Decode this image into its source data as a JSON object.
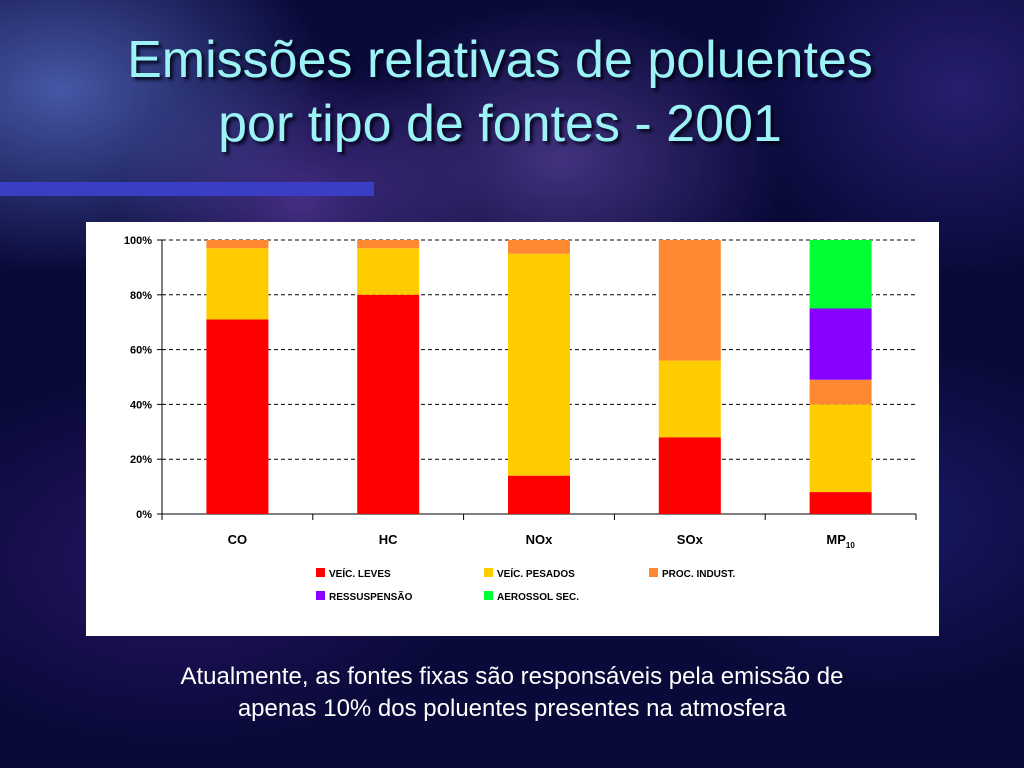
{
  "slide": {
    "title_line1": "Emissões relativas de poluentes",
    "title_line2": "por tipo de fontes - 2001",
    "caption_line1": "Atualmente, as fontes fixas são responsáveis pela emissão de",
    "caption_line2": "apenas 10% dos poluentes presentes na atmosfera"
  },
  "colors": {
    "title": "#9cf3f5",
    "accent_rule": "#3a3ec4",
    "background": "#0a0a3a"
  },
  "chart_data": {
    "type": "bar",
    "stacked": true,
    "categories": [
      "CO",
      "HC",
      "NOx",
      "SOx",
      "MP"
    ],
    "category_subscripts": [
      "",
      "",
      "",
      "",
      "10"
    ],
    "ylim": [
      0,
      100
    ],
    "yticks": [
      0,
      20,
      40,
      60,
      80,
      100
    ],
    "ytick_labels": [
      "0%",
      "20%",
      "40%",
      "60%",
      "80%",
      "100%"
    ],
    "grid": "horizontal dashed",
    "legend_position": "bottom",
    "series": [
      {
        "name": "VEÍC. LEVES",
        "color": "#ff0000",
        "values": [
          71,
          80,
          14,
          28,
          8
        ]
      },
      {
        "name": "VEÍC. PESADOS",
        "color": "#ffcc00",
        "values": [
          26,
          17,
          81,
          28,
          32
        ]
      },
      {
        "name": "PROC. INDUST.",
        "color": "#ff8833",
        "values": [
          3,
          3,
          5,
          44,
          9
        ]
      },
      {
        "name": "RESSUSPENSÃO",
        "color": "#8800ff",
        "values": [
          0,
          0,
          0,
          0,
          26
        ]
      },
      {
        "name": "AEROSSOL SEC.",
        "color": "#00ff33",
        "values": [
          0,
          0,
          0,
          0,
          25
        ]
      }
    ]
  }
}
